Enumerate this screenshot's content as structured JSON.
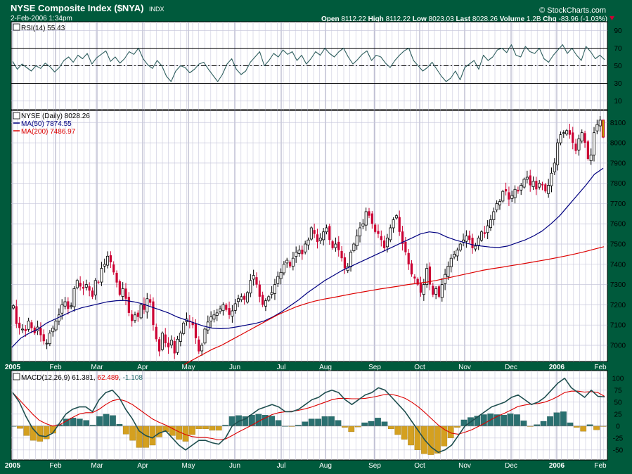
{
  "header": {
    "title": "NYSE Composite Index ($NYA)",
    "exchange": "INDX",
    "date": "2-Feb-2006 1:34pm",
    "brand": "© StockCharts.com",
    "quote": {
      "open_label": "Open",
      "open": "8112.22",
      "high_label": "High",
      "high": "8112.22",
      "low_label": "Low",
      "low": "8023.03",
      "last_label": "Last",
      "last": "8028.26",
      "volume_label": "Volume",
      "volume": "1.2B",
      "chg_label": "Chg",
      "chg": "-83.96 (-1.03%)"
    }
  },
  "colors": {
    "background": "#005a3c",
    "panel": "#ffffff",
    "grid": "#c8c8dc",
    "up_candle": "#000000",
    "down_candle": "#cc0033",
    "ma50": "#000080",
    "ma200": "#dd0000",
    "rsi": "#2f5f5f",
    "macd": "#1f4f4f",
    "signal": "#dd0000",
    "hist_pos": "#2a7070",
    "hist_neg": "#d4a020"
  },
  "x_axis": {
    "labels": [
      {
        "label": "2005",
        "bold": true
      },
      {
        "label": "Feb",
        "bold": false
      },
      {
        "label": "Mar",
        "bold": false
      },
      {
        "label": "Apr",
        "bold": false
      },
      {
        "label": "May",
        "bold": false
      },
      {
        "label": "Jun",
        "bold": false
      },
      {
        "label": "Jul",
        "bold": false
      },
      {
        "label": "Aug",
        "bold": false
      },
      {
        "label": "Sep",
        "bold": false
      },
      {
        "label": "Oct",
        "bold": false
      },
      {
        "label": "Nov",
        "bold": false
      },
      {
        "label": "Dec",
        "bold": false
      },
      {
        "label": "2006",
        "bold": true
      },
      {
        "label": "Feb",
        "bold": false
      }
    ]
  },
  "chart_data": [
    {
      "type": "line",
      "legend": "RSI(14) 55.43",
      "ylim": [
        0,
        100
      ],
      "yticks": [
        10,
        30,
        50,
        70,
        90
      ],
      "reference_lines": [
        30,
        50,
        70
      ],
      "series": [
        {
          "values": [
            55,
            46,
            52,
            48,
            44,
            50,
            47,
            53,
            49,
            43,
            48,
            56,
            60,
            54,
            62,
            58,
            64,
            52,
            59,
            63,
            67,
            55,
            60,
            53,
            58,
            66,
            63,
            70,
            58,
            51,
            47,
            56,
            50,
            38,
            32,
            44,
            50,
            48,
            42,
            46,
            52,
            54,
            46,
            39,
            32,
            40,
            52,
            58,
            46,
            40,
            44,
            54,
            60,
            66,
            50,
            56,
            64,
            60,
            68,
            63,
            66,
            56,
            62,
            52,
            58,
            66,
            62,
            70,
            64,
            60,
            66,
            70,
            60,
            52,
            57,
            63,
            67,
            56,
            62,
            60,
            53,
            48,
            56,
            62,
            67,
            70,
            56,
            50,
            44,
            48,
            54,
            46,
            38,
            32,
            36,
            44,
            34,
            48,
            52,
            56,
            46,
            62,
            56,
            60,
            68,
            70,
            65,
            74,
            62,
            60,
            72,
            66,
            64,
            70,
            58,
            54,
            62,
            68,
            74,
            64,
            70,
            62,
            56,
            72,
            66,
            58,
            62,
            57
          ]
        }
      ]
    },
    {
      "type": "candlestick",
      "legend": [
        {
          "label": "NYSE (Daily) 8028.26"
        },
        {
          "label": "MA(50) 7874.55"
        },
        {
          "label": "MA(200) 7486.97"
        }
      ],
      "ylim": [
        6920,
        8160
      ],
      "yticks": [
        7000,
        7100,
        7200,
        7300,
        7400,
        7500,
        7600,
        7700,
        7800,
        7900,
        8000,
        8100
      ],
      "last_candle": {
        "open": 8112.22,
        "high": 8112.22,
        "low": 8023.03,
        "close": 8028.26
      },
      "close": [
        7195,
        7105,
        7085,
        7080,
        7070,
        7120,
        7085,
        7060,
        7090,
        7050,
        7020,
        7010,
        7060,
        7085,
        7120,
        7150,
        7200,
        7215,
        7180,
        7195,
        7280,
        7320,
        7290,
        7280,
        7300,
        7270,
        7240,
        7320,
        7310,
        7380,
        7400,
        7440,
        7410,
        7360,
        7310,
        7250,
        7280,
        7230,
        7160,
        7120,
        7150,
        7140,
        7200,
        7175,
        7230,
        7210,
        7100,
        7030,
        6970,
        7060,
        7010,
        6990,
        7025,
        6960,
        7030,
        7060,
        7110,
        7130,
        7115,
        7100,
        7035,
        6970,
        7000,
        7080,
        7115,
        7140,
        7150,
        7160,
        7180,
        7200,
        7175,
        7150,
        7170,
        7205,
        7230,
        7240,
        7225,
        7260,
        7320,
        7345,
        7300,
        7240,
        7200,
        7220,
        7240,
        7260,
        7300,
        7340,
        7360,
        7400,
        7420,
        7390,
        7430,
        7460,
        7470,
        7450,
        7500,
        7520,
        7580,
        7550,
        7510,
        7530,
        7560,
        7580,
        7520,
        7480,
        7500,
        7470,
        7430,
        7380,
        7390,
        7460,
        7500,
        7540,
        7580,
        7600,
        7660,
        7640,
        7600,
        7560,
        7550,
        7520,
        7480,
        7530,
        7580,
        7620,
        7640,
        7560,
        7500,
        7460,
        7400,
        7350,
        7330,
        7300,
        7260,
        7300,
        7380,
        7300,
        7250,
        7280,
        7240,
        7300,
        7350,
        7390,
        7430,
        7450,
        7470,
        7500,
        7520,
        7540,
        7520,
        7480,
        7490,
        7530,
        7560,
        7550,
        7590,
        7620,
        7660,
        7700,
        7710,
        7760,
        7760,
        7720,
        7740,
        7770,
        7760,
        7790,
        7820,
        7830,
        7790,
        7810,
        7770,
        7800,
        7790,
        7760,
        7790,
        7850,
        7900,
        8000,
        8040,
        8050,
        8060,
        8040,
        8000,
        7960,
        8020,
        8050,
        8000,
        7920,
        7940,
        8050,
        8090,
        8112,
        8028
      ],
      "series": [
        {
          "name": "MA(50)",
          "values": [
            6990,
            7035,
            7060,
            7080,
            7110,
            7130,
            7150,
            7170,
            7185,
            7195,
            7205,
            7215,
            7220,
            7222,
            7215,
            7205,
            7190,
            7175,
            7160,
            7140,
            7125,
            7110,
            7095,
            7085,
            7082,
            7085,
            7092,
            7100,
            7108,
            7120,
            7140,
            7165,
            7195,
            7225,
            7260,
            7290,
            7320,
            7345,
            7370,
            7390,
            7410,
            7430,
            7450,
            7470,
            7490,
            7510,
            7530,
            7550,
            7560,
            7555,
            7535,
            7520,
            7508,
            7496,
            7490,
            7485,
            7483,
            7490,
            7505,
            7520,
            7540,
            7565,
            7600,
            7640,
            7690,
            7740,
            7790,
            7845,
            7874
          ]
        },
        {
          "name": "MA(200)",
          "values": [
            6905,
            6930,
            6955,
            6980,
            7000,
            7025,
            7050,
            7075,
            7100,
            7125,
            7150,
            7170,
            7190,
            7205,
            7218,
            7228,
            7236,
            7245,
            7254,
            7262,
            7270,
            7278,
            7285,
            7292,
            7300,
            7306,
            7312,
            7320,
            7330,
            7340,
            7350,
            7360,
            7370,
            7378,
            7385,
            7393,
            7400,
            7408,
            7416,
            7424,
            7433,
            7442,
            7452,
            7463,
            7475,
            7487
          ]
        }
      ]
    },
    {
      "type": "line",
      "legend": [
        {
          "label": "MACD(12,26,9) 61.381"
        },
        {
          "label": "62.489"
        },
        {
          "label": "-1.108"
        }
      ],
      "ylim": [
        -65,
        110
      ],
      "yticks": [
        -50,
        -25,
        0,
        25,
        50,
        75,
        100
      ],
      "series": [
        {
          "name": "MACD",
          "values": [
            70,
            50,
            20,
            -5,
            -20,
            -22,
            -15,
            5,
            25,
            35,
            40,
            40,
            30,
            55,
            70,
            75,
            60,
            35,
            15,
            -10,
            -20,
            -25,
            -15,
            -10,
            -25,
            -40,
            -50,
            -40,
            -30,
            -30,
            -35,
            -38,
            -25,
            0,
            10,
            15,
            25,
            35,
            40,
            45,
            40,
            30,
            30,
            35,
            45,
            55,
            60,
            70,
            75,
            70,
            55,
            45,
            55,
            65,
            70,
            80,
            75,
            60,
            45,
            30,
            10,
            -10,
            -30,
            -45,
            -55,
            -50,
            -40,
            -20,
            0,
            10,
            20,
            30,
            40,
            45,
            50,
            60,
            65,
            55,
            45,
            50,
            60,
            75,
            90,
            100,
            80,
            70,
            60,
            75,
            62,
            61
          ]
        },
        {
          "name": "Signal",
          "values": [
            70,
            55,
            40,
            25,
            12,
            5,
            0,
            2,
            10,
            18,
            25,
            28,
            28,
            35,
            45,
            53,
            56,
            52,
            45,
            35,
            25,
            15,
            8,
            2,
            -5,
            -12,
            -18,
            -22,
            -24,
            -24,
            -26,
            -29,
            -27,
            -20,
            -12,
            -5,
            2,
            10,
            17,
            24,
            28,
            30,
            31,
            33,
            36,
            40,
            45,
            50,
            55,
            58,
            58,
            57,
            57,
            58,
            60,
            63,
            66,
            66,
            63,
            58,
            50,
            40,
            28,
            15,
            2,
            -8,
            -15,
            -17,
            -13,
            -8,
            -1,
            6,
            14,
            21,
            27,
            34,
            41,
            44,
            46,
            47,
            50,
            55,
            62,
            70,
            73,
            73,
            71,
            72,
            70,
            62
          ]
        },
        {
          "name": "Histogram",
          "values": [
            0,
            -5,
            -20,
            -30,
            -32,
            -27,
            -15,
            3,
            15,
            17,
            15,
            12,
            2,
            20,
            25,
            22,
            4,
            -17,
            -30,
            -45,
            -45,
            -40,
            -23,
            -12,
            -20,
            -28,
            -32,
            -18,
            -6,
            -6,
            -9,
            -9,
            2,
            20,
            22,
            20,
            23,
            25,
            23,
            21,
            12,
            0,
            -1,
            2,
            9,
            15,
            15,
            20,
            20,
            12,
            -3,
            -12,
            -2,
            7,
            10,
            17,
            9,
            -6,
            -18,
            -28,
            -40,
            -50,
            -58,
            -60,
            -57,
            -42,
            -25,
            -3,
            13,
            18,
            21,
            24,
            26,
            24,
            23,
            26,
            24,
            11,
            -1,
            3,
            10,
            20,
            28,
            30,
            7,
            -3,
            -11,
            3,
            -8,
            -1
          ]
        }
      ]
    }
  ]
}
